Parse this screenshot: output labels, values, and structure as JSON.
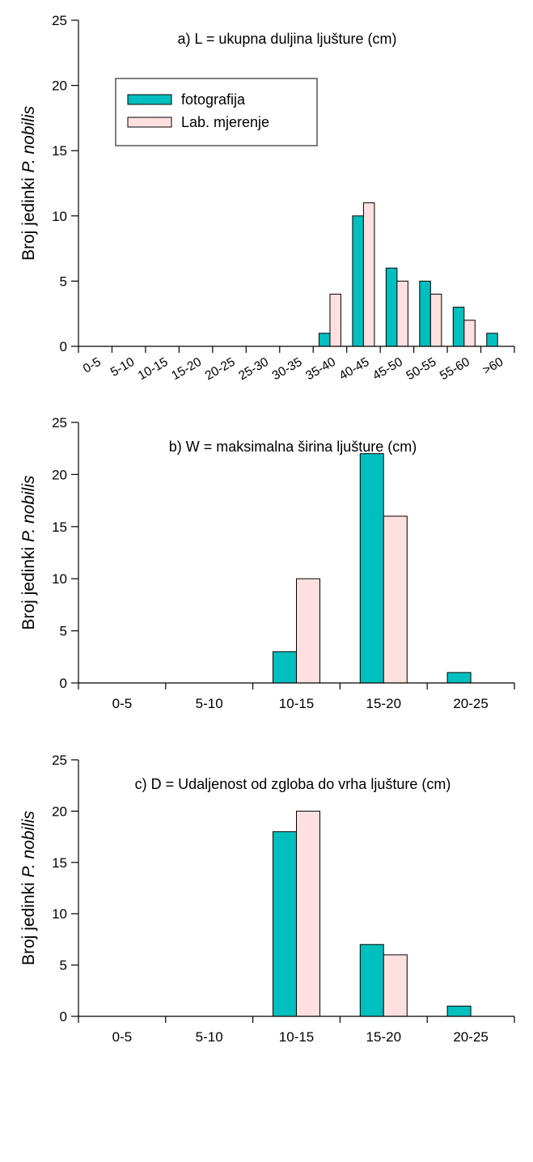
{
  "chart_data": [
    {
      "type": "bar",
      "title": "a) L = ukupna duljina ljušture (cm)",
      "ylabel": "Broj jedinki ",
      "ylabel_italic": "P. nobilis",
      "ylim": [
        0,
        25
      ],
      "yticks": [
        "0",
        "5",
        "10",
        "15",
        "20",
        "25"
      ],
      "categories": [
        "0-5",
        "5-10",
        "10-15",
        "15-20",
        "20-25",
        "25-30",
        "30-35",
        "35-40",
        "40-45",
        "45-50",
        "50-55",
        "55-60",
        ">60"
      ],
      "tick_rotation": -30,
      "legend": "upper-left",
      "series": [
        {
          "name": "fotografija",
          "color": "#00bfbf",
          "values": [
            0,
            0,
            0,
            0,
            0,
            0,
            0,
            1,
            10,
            6,
            5,
            3,
            1
          ]
        },
        {
          "name": "Lab. mjerenje",
          "color": "#ffe0e0",
          "values": [
            0,
            0,
            0,
            0,
            0,
            0,
            0,
            4,
            11,
            5,
            4,
            2,
            0
          ]
        }
      ]
    },
    {
      "type": "bar",
      "title": "b) W = maksimalna širina ljušture (cm)",
      "ylabel": "Broj jedinki ",
      "ylabel_italic": "P. nobilis",
      "ylim": [
        0,
        25
      ],
      "yticks": [
        "0",
        "5",
        "10",
        "15",
        "20",
        "25"
      ],
      "categories": [
        "0-5",
        "5-10",
        "10-15",
        "15-20",
        "20-25"
      ],
      "tick_rotation": 0,
      "legend": "none",
      "series": [
        {
          "color": "#00bfbf",
          "values": [
            0,
            0,
            3,
            22,
            1
          ]
        },
        {
          "color": "#ffe0e0",
          "values": [
            0,
            0,
            10,
            16,
            0
          ]
        }
      ]
    },
    {
      "type": "bar",
      "title": "c) D = Udaljenost od zgloba do vrha ljušture (cm)",
      "ylabel": "Broj jedinki ",
      "ylabel_italic": "P. nobilis",
      "ylim": [
        0,
        25
      ],
      "yticks": [
        "0",
        "5",
        "10",
        "15",
        "20",
        "25"
      ],
      "categories": [
        "0-5",
        "5-10",
        "10-15",
        "15-20",
        "20-25"
      ],
      "tick_rotation": 0,
      "legend": "none",
      "series": [
        {
          "color": "#00bfbf",
          "values": [
            0,
            0,
            18,
            7,
            1
          ]
        },
        {
          "color": "#ffe0e0",
          "values": [
            0,
            0,
            20,
            6,
            0
          ]
        }
      ]
    }
  ]
}
